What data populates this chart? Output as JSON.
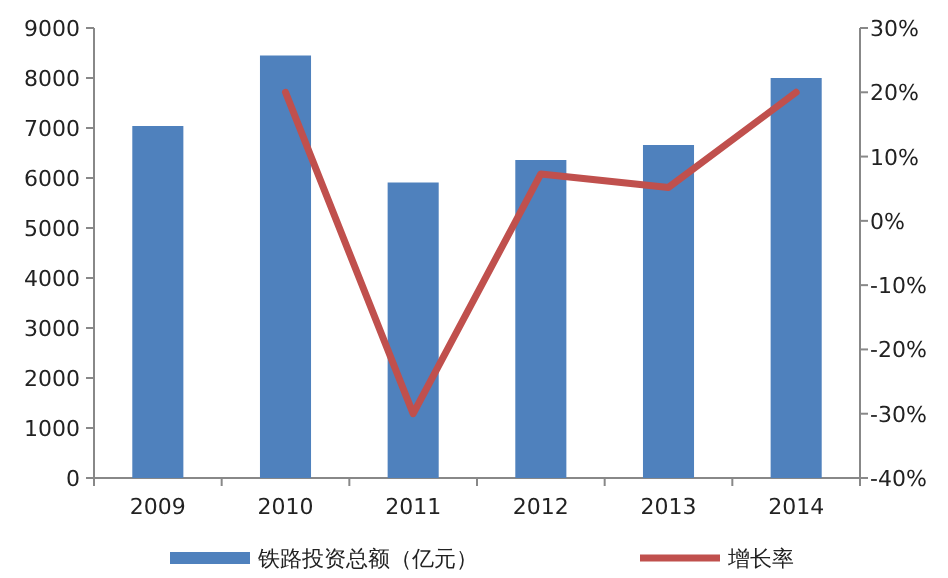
{
  "chart_data": {
    "type": "bar",
    "categories": [
      "2009",
      "2010",
      "2011",
      "2012",
      "2013",
      "2014"
    ],
    "series": [
      {
        "name": "铁路投资总额（亿元）",
        "color": "#4f81bd",
        "values": [
          7040,
          8450,
          5910,
          6360,
          6660,
          8000
        ]
      },
      {
        "name": "增长率",
        "type": "line",
        "axis": "y2",
        "color": "#c0504d",
        "values": [
          null,
          20,
          -30,
          7.3,
          5.2,
          20
        ]
      }
    ],
    "ylim": [
      0,
      9000
    ],
    "yticks": [
      0,
      1000,
      2000,
      3000,
      4000,
      5000,
      6000,
      7000,
      8000,
      9000
    ],
    "y2lim": [
      -40,
      30
    ],
    "y2ticks": [
      {
        "value": -40,
        "label": "-40%"
      },
      {
        "value": -30,
        "label": "-30%"
      },
      {
        "value": -20,
        "label": "-20%"
      },
      {
        "value": -10,
        "label": "-10%"
      },
      {
        "value": 0,
        "label": "0%"
      },
      {
        "value": 10,
        "label": "10%"
      },
      {
        "value": 20,
        "label": "20%"
      },
      {
        "value": 30,
        "label": "30%"
      }
    ],
    "legend": "bottom",
    "grid": false
  }
}
